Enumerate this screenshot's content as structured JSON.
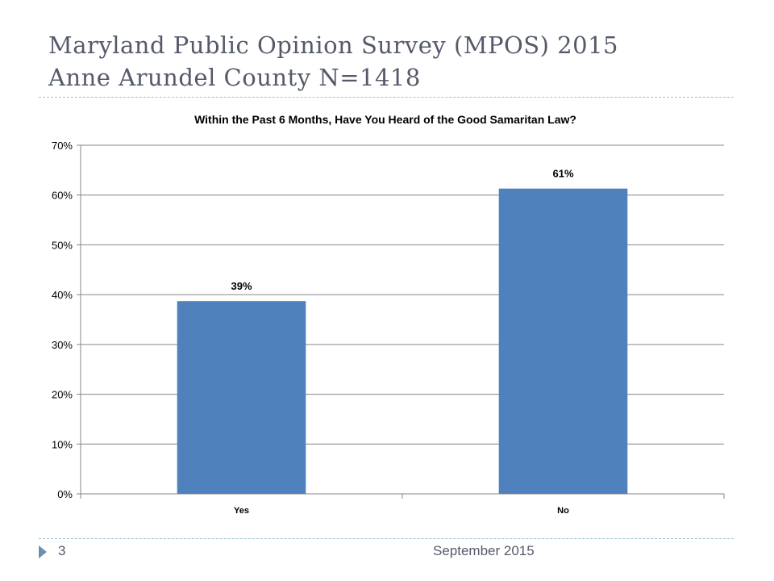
{
  "slide": {
    "title_line1": "Maryland Public Opinion Survey (MPOS) 2015",
    "title_line2": "Anne Arundel County N=1418",
    "page_number": "3",
    "footer_date": "September 2015"
  },
  "colors": {
    "bar": "#4f81bd",
    "title": "#555a6a",
    "divider": "#9fbfd4",
    "grid": "#868686"
  },
  "chart_data": {
    "type": "bar",
    "title": "Within the Past 6 Months, Have You Heard of the Good Samaritan Law?",
    "categories": [
      "Yes",
      "No"
    ],
    "values": [
      38.7,
      61.3
    ],
    "data_labels": [
      "39%",
      "61%"
    ],
    "ylim": [
      0,
      70
    ],
    "yticks": [
      0,
      10,
      20,
      30,
      40,
      50,
      60,
      70
    ],
    "ytick_labels": [
      "0%",
      "10%",
      "20%",
      "30%",
      "40%",
      "50%",
      "60%",
      "70%"
    ],
    "xlabel": "",
    "ylabel": "",
    "grid": true,
    "legend": "none"
  }
}
